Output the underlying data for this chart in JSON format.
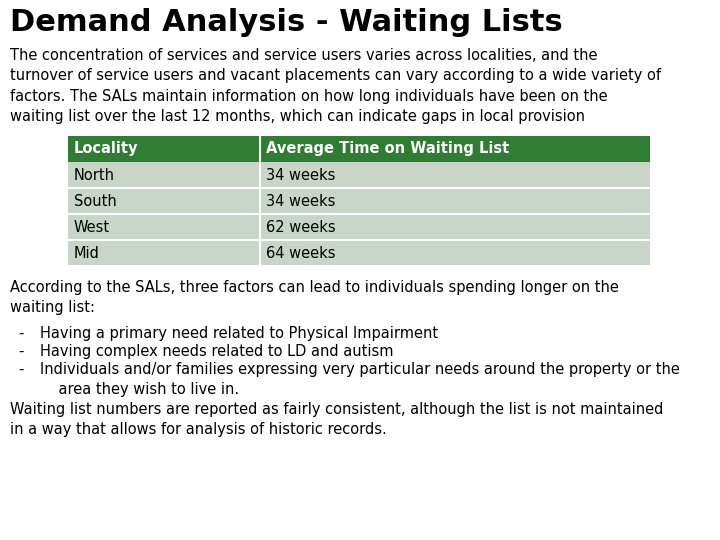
{
  "title": "Demand Analysis - Waiting Lists",
  "intro_text": "The concentration of services and service users varies across localities, and the\nturnover of service users and vacant placements can vary according to a wide variety of\nfactors. The SALs maintain information on how long individuals have been on the\nwaiting list over the last 12 months, which can indicate gaps in local provision",
  "table_header": [
    "Locality",
    "Average Time on Waiting List"
  ],
  "table_rows": [
    [
      "North",
      "34 weeks"
    ],
    [
      "South",
      "34 weeks"
    ],
    [
      "West",
      "62 weeks"
    ],
    [
      "Mid",
      "64 weeks"
    ]
  ],
  "header_bg": "#2e7d32",
  "header_fg": "#ffffff",
  "row_bg": "#c8d5c8",
  "post_text1": "According to the SALs, three factors can lead to individuals spending longer on the\nwaiting list:",
  "bullet_items": [
    [
      "- ",
      "Having a primary need related to Physical Impairment"
    ],
    [
      "- ",
      "Having complex needs related to LD and autism"
    ],
    [
      "- ",
      "Individuals and/or families expressing very particular needs around the property or the\n    area they wish to live in."
    ]
  ],
  "footer_text": "Waiting list numbers are reported as fairly consistent, although the list is not maintained\nin a way that allows for analysis of historic records.",
  "bg_color": "#ffffff",
  "text_color": "#000000",
  "title_fontsize": 22,
  "body_fontsize": 10.5,
  "table_fontsize": 10.5
}
